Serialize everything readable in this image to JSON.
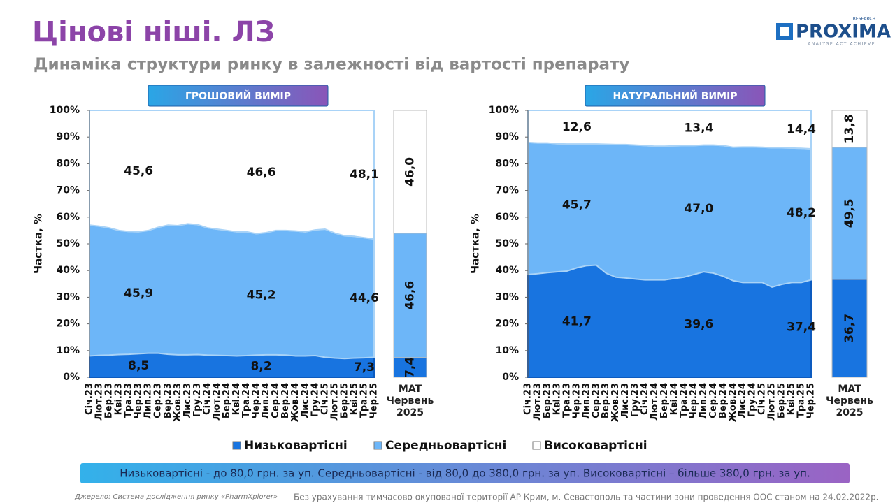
{
  "header": {
    "title": "Цінові ніші. ЛЗ",
    "subtitle": "Динаміка структури ринку в залежності від вартості препарату",
    "logo": "PROXIMA",
    "logo_tag": "RESEARCH",
    "logo_motto": "ANALYSE ACT ACHIEVE"
  },
  "chart_data": [
    {
      "type": "area",
      "title": "ГРОШОВИЙ ВИМІР",
      "ylabel": "Частка, %",
      "stacked": true,
      "categories": [
        "Січ.23",
        "Лют.23",
        "Бер.23",
        "Кві.23",
        "Тра.23",
        "Чер.23",
        "Лип.23",
        "Сер.23",
        "Вер.23",
        "Жов.23",
        "Лис.23",
        "Гру.23",
        "Січ.24",
        "Лют.24",
        "Бер.24",
        "Кві.24",
        "Тра.24",
        "Чер.24",
        "Лип.24",
        "Сер.24",
        "Вер.24",
        "Жов.24",
        "Лис.24",
        "Гру.24",
        "Січ.25",
        "Лют.25",
        "Бер.25",
        "Кві.25",
        "Тра.25",
        "Чер.25"
      ],
      "series": [
        {
          "name": "Низьковартісні",
          "color": "#1874e0",
          "values": [
            8.0,
            8.2,
            8.3,
            8.5,
            8.6,
            8.8,
            9.0,
            9.0,
            8.6,
            8.4,
            8.4,
            8.5,
            8.3,
            8.2,
            8.1,
            8.0,
            8.1,
            8.3,
            8.4,
            8.4,
            8.3,
            8.0,
            8.0,
            8.1,
            7.5,
            7.2,
            7.0,
            7.2,
            7.3,
            7.5
          ],
          "period_values": [
            8.5,
            8.2,
            7.3
          ],
          "period_value_labels": [
            "8,5",
            "8,2",
            "7,3"
          ]
        },
        {
          "name": "Середньовартісні",
          "color": "#6db6f8",
          "values": [
            49.0,
            48.4,
            47.7,
            46.5,
            46.0,
            45.7,
            46.0,
            47.2,
            48.4,
            48.4,
            49.1,
            48.7,
            47.7,
            47.3,
            46.9,
            46.5,
            46.4,
            45.5,
            45.8,
            46.6,
            46.7,
            46.8,
            46.5,
            47.1,
            48.0,
            46.8,
            46.0,
            45.6,
            45.0,
            44.3
          ],
          "period_values": [
            45.9,
            45.2,
            44.6
          ],
          "period_value_labels": [
            "45,9",
            "45,2",
            "44,6"
          ]
        },
        {
          "name": "Високовартісні",
          "color": "#ffffff",
          "values": [
            43.0,
            43.4,
            44.0,
            45.0,
            45.4,
            45.5,
            45.0,
            43.8,
            43.0,
            43.2,
            42.5,
            42.8,
            44.0,
            44.5,
            45.0,
            45.5,
            45.5,
            46.2,
            45.8,
            45.0,
            45.0,
            45.2,
            45.5,
            44.8,
            44.5,
            46.0,
            47.0,
            47.2,
            47.7,
            48.2
          ],
          "period_values": [
            45.6,
            46.6,
            48.1
          ],
          "period_value_labels": [
            "45,6",
            "46,6",
            "48,1"
          ]
        }
      ],
      "ylim": [
        0,
        100
      ],
      "yticks": [
        {
          "value": 0,
          "label": "0%"
        },
        {
          "value": 10,
          "label": "10%"
        },
        {
          "value": 20,
          "label": "20%"
        },
        {
          "value": 30,
          "label": "30%"
        },
        {
          "value": 40,
          "label": "40%"
        },
        {
          "value": 50,
          "label": "50%"
        },
        {
          "value": 60,
          "label": "60%"
        },
        {
          "value": 70,
          "label": "70%"
        },
        {
          "value": 80,
          "label": "80%"
        },
        {
          "value": 90,
          "label": "90%"
        },
        {
          "value": 100,
          "label": "100%"
        }
      ]
    },
    {
      "type": "bar",
      "stacked": true,
      "categories": [
        "MAT Червень 2025"
      ],
      "ylim": [
        0,
        100
      ],
      "series": [
        {
          "color": "#1874e0",
          "values": [
            7.4
          ],
          "value_labels": [
            "7,4"
          ]
        },
        {
          "color": "#6db6f8",
          "values": [
            46.6
          ],
          "value_labels": [
            "46,6"
          ]
        },
        {
          "color": "#ffffff",
          "values": [
            46.0
          ],
          "value_labels": [
            "46,0"
          ]
        }
      ]
    },
    {
      "type": "area",
      "title": "НАТУРАЛЬНИЙ ВИМІР",
      "ylabel": "Частка, %",
      "stacked": true,
      "categories": [
        "Січ.23",
        "Лют.23",
        "Бер.23",
        "Кві.23",
        "Тра.23",
        "Чер.23",
        "Лип.23",
        "Сер.23",
        "Вер.23",
        "Жов.23",
        "Лис.23",
        "Гру.23",
        "Січ.24",
        "Лют.24",
        "Бер.24",
        "Кві.24",
        "Тра.24",
        "Чер.24",
        "Лип.24",
        "Сер.24",
        "Вер.24",
        "Жов.24",
        "Лис.24",
        "Гру.24",
        "Січ.25",
        "Лют.25",
        "Бер.25",
        "Кві.25",
        "Тра.25",
        "Чер.25"
      ],
      "series": [
        {
          "name": "Низьковартісні",
          "color": "#1874e0",
          "values": [
            38.5,
            38.8,
            39.2,
            39.5,
            39.8,
            41.0,
            41.8,
            42.0,
            39.0,
            37.5,
            37.2,
            36.8,
            36.5,
            36.5,
            36.5,
            37.0,
            37.5,
            38.5,
            39.5,
            39.0,
            37.8,
            36.2,
            35.5,
            35.5,
            35.5,
            33.8,
            34.8,
            35.5,
            35.5,
            36.5
          ],
          "period_values": [
            41.7,
            39.6,
            37.4
          ],
          "period_value_labels": [
            "41,7",
            "39,6",
            "37,4"
          ]
        },
        {
          "name": "Середньовартісні",
          "color": "#6db6f8",
          "values": [
            49.5,
            49.0,
            48.6,
            48.0,
            47.6,
            46.4,
            45.6,
            45.4,
            48.3,
            49.7,
            50.0,
            50.2,
            50.3,
            50.1,
            50.1,
            49.7,
            49.3,
            48.3,
            47.5,
            48.0,
            49.0,
            50.0,
            50.8,
            50.8,
            50.7,
            52.2,
            51.2,
            50.4,
            50.3,
            49.1
          ],
          "period_values": [
            45.7,
            47.0,
            48.2
          ],
          "period_value_labels": [
            "45,7",
            "47,0",
            "48,2"
          ]
        },
        {
          "name": "Високовартісні",
          "color": "#ffffff",
          "values": [
            12.0,
            12.2,
            12.2,
            12.5,
            12.6,
            12.6,
            12.6,
            12.6,
            12.7,
            12.8,
            12.8,
            13.0,
            13.2,
            13.4,
            13.4,
            13.3,
            13.2,
            13.2,
            13.0,
            13.0,
            13.2,
            13.8,
            13.7,
            13.7,
            13.8,
            14.0,
            14.0,
            14.1,
            14.2,
            14.4
          ],
          "period_values": [
            12.6,
            13.4,
            14.4
          ],
          "period_value_labels": [
            "12,6",
            "13,4",
            "14,4"
          ]
        }
      ],
      "ylim": [
        0,
        100
      ],
      "yticks": [
        {
          "value": 0,
          "label": "0%"
        },
        {
          "value": 10,
          "label": "10%"
        },
        {
          "value": 20,
          "label": "20%"
        },
        {
          "value": 30,
          "label": "30%"
        },
        {
          "value": 40,
          "label": "40%"
        },
        {
          "value": 50,
          "label": "50%"
        },
        {
          "value": 60,
          "label": "60%"
        },
        {
          "value": 70,
          "label": "70%"
        },
        {
          "value": 80,
          "label": "80%"
        },
        {
          "value": 90,
          "label": "90%"
        },
        {
          "value": 100,
          "label": "100%"
        }
      ]
    },
    {
      "type": "bar",
      "stacked": true,
      "categories": [
        "MAT Червень 2025"
      ],
      "ylim": [
        0,
        100
      ],
      "series": [
        {
          "color": "#1874e0",
          "values": [
            36.7
          ],
          "value_labels": [
            "36,7"
          ]
        },
        {
          "color": "#6db6f8",
          "values": [
            49.5
          ],
          "value_labels": [
            "49,5"
          ]
        },
        {
          "color": "#ffffff",
          "values": [
            13.8
          ],
          "value_labels": [
            "13,8"
          ]
        }
      ]
    }
  ],
  "footer": {
    "definitions": "Низьковартісні - до 80,0 грн. за уп. Середньовартісні - від 80,0 до 380,0 грн. за уп. Високовартісні – більше 380,0 грн. за уп.",
    "source": "Джерело: Система дослідження ринку «PharmXplorer»",
    "note": "Без урахування тимчасово окупованої території АР Крим, м. Севастополь та частини зони проведення ООС станом на 24.02.2022р."
  }
}
